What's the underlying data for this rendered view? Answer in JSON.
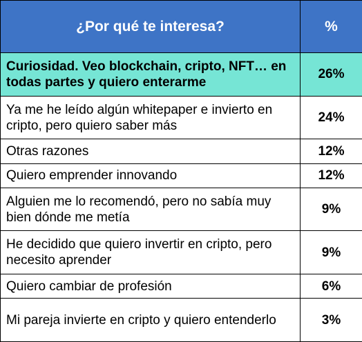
{
  "chart_data": {
    "type": "table",
    "header": {
      "question": "¿Por qué te interesa?",
      "percent": "%"
    },
    "rows": [
      {
        "reason": "Curiosidad. Veo blockchain, cripto, NFT… en todas partes y quiero enterarme",
        "value": 26,
        "label": "26%",
        "highlight": true
      },
      {
        "reason": "Ya me he leído algún whitepaper e invierto en cripto, pero quiero saber más",
        "value": 24,
        "label": "24%",
        "highlight": false
      },
      {
        "reason": "Otras razones",
        "value": 12,
        "label": "12%",
        "highlight": false
      },
      {
        "reason": "Quiero emprender innovando",
        "value": 12,
        "label": "12%",
        "highlight": false
      },
      {
        "reason": "Alguien me lo recomendó, pero no sabía muy bien dónde me metía",
        "value": 9,
        "label": "9%",
        "highlight": false
      },
      {
        "reason": "He decidido que quiero invertir en cripto, pero necesito aprender",
        "value": 9,
        "label": "9%",
        "highlight": false
      },
      {
        "reason": "Quiero cambiar de profesión",
        "value": 6,
        "label": "6%",
        "highlight": false
      },
      {
        "reason": "Mi pareja invierte en cripto y quiero entenderlo",
        "value": 3,
        "label": "3%",
        "highlight": false
      }
    ],
    "colors": {
      "header_bg": "#3e74c6",
      "header_text": "#ffffff",
      "highlight_bg": "#76e5d5",
      "border": "#000000"
    }
  }
}
